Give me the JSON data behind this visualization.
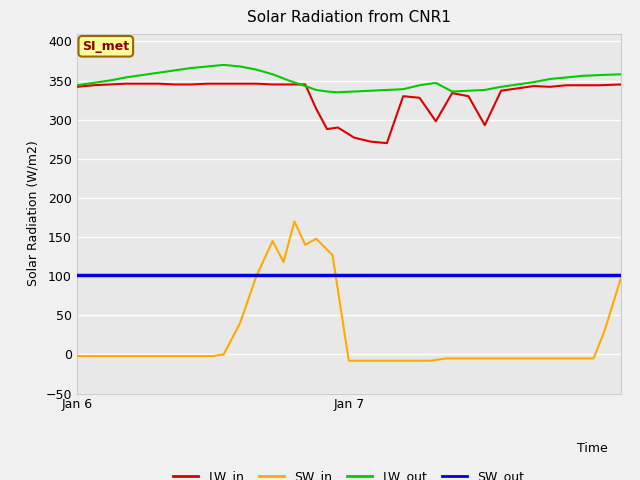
{
  "title": "Solar Radiation from CNR1",
  "xlabel": "Time",
  "ylabel": "Solar Radiation (W/m2)",
  "ylim": [
    -50,
    410
  ],
  "yticks": [
    -50,
    0,
    50,
    100,
    150,
    200,
    250,
    300,
    350,
    400
  ],
  "plot_bg_color": "#e8e8e8",
  "grid_color": "#ffffff",
  "annotation_text": "SI_met",
  "annotation_bg": "#ffff99",
  "annotation_border": "#996600",
  "x_start": 0,
  "x_end": 100,
  "LW_in": {
    "color": "#dd0000",
    "x": [
      0,
      3,
      6,
      9,
      12,
      15,
      18,
      21,
      24,
      27,
      30,
      33,
      36,
      39,
      42,
      44,
      46,
      48,
      51,
      54,
      57,
      60,
      63,
      66,
      69,
      72,
      75,
      78,
      81,
      84,
      87,
      90,
      93,
      96,
      100
    ],
    "y": [
      342,
      344,
      345,
      346,
      346,
      346,
      345,
      345,
      346,
      346,
      346,
      346,
      345,
      345,
      345,
      314,
      288,
      290,
      277,
      272,
      270,
      330,
      328,
      298,
      334,
      330,
      293,
      337,
      340,
      343,
      342,
      344,
      344,
      344,
      345
    ]
  },
  "SW_in": {
    "color": "#ffaa00",
    "x": [
      0,
      5,
      10,
      15,
      20,
      25,
      27,
      30,
      33,
      36,
      38,
      40,
      42,
      44,
      47,
      50,
      53,
      56,
      59,
      62,
      65,
      68,
      71,
      74,
      77,
      80,
      83,
      86,
      89,
      92,
      95,
      97,
      100
    ],
    "y": [
      -2,
      -2,
      -2,
      -2,
      -2,
      -2,
      0,
      40,
      100,
      145,
      118,
      170,
      140,
      148,
      127,
      -8,
      -8,
      -8,
      -8,
      -8,
      -8,
      -5,
      -5,
      -5,
      -5,
      -5,
      -5,
      -5,
      -5,
      -5,
      -5,
      30,
      97
    ]
  },
  "LW_out": {
    "color": "#00cc00",
    "x": [
      0,
      3,
      6,
      9,
      12,
      15,
      18,
      21,
      24,
      27,
      30,
      33,
      36,
      39,
      42,
      44,
      46,
      48,
      51,
      54,
      57,
      60,
      63,
      66,
      69,
      72,
      75,
      78,
      81,
      84,
      87,
      90,
      93,
      96,
      100
    ],
    "y": [
      344,
      347,
      350,
      354,
      357,
      360,
      363,
      366,
      368,
      370,
      368,
      364,
      358,
      350,
      343,
      338,
      336,
      335,
      336,
      337,
      338,
      339,
      344,
      347,
      336,
      337,
      338,
      342,
      345,
      348,
      352,
      354,
      356,
      357,
      358
    ]
  },
  "SW_out": {
    "color": "#0000dd",
    "x": [
      0,
      100
    ],
    "y": [
      101,
      101
    ]
  },
  "xtick_positions": [
    0,
    50,
    100
  ],
  "xtick_labels": [
    "Jan 6",
    "Jan 7",
    ""
  ],
  "legend_entries": [
    "LW_in",
    "SW_in",
    "LW_out",
    "SW_out"
  ],
  "legend_colors": [
    "#dd0000",
    "#ffaa00",
    "#00cc00",
    "#0000dd"
  ]
}
